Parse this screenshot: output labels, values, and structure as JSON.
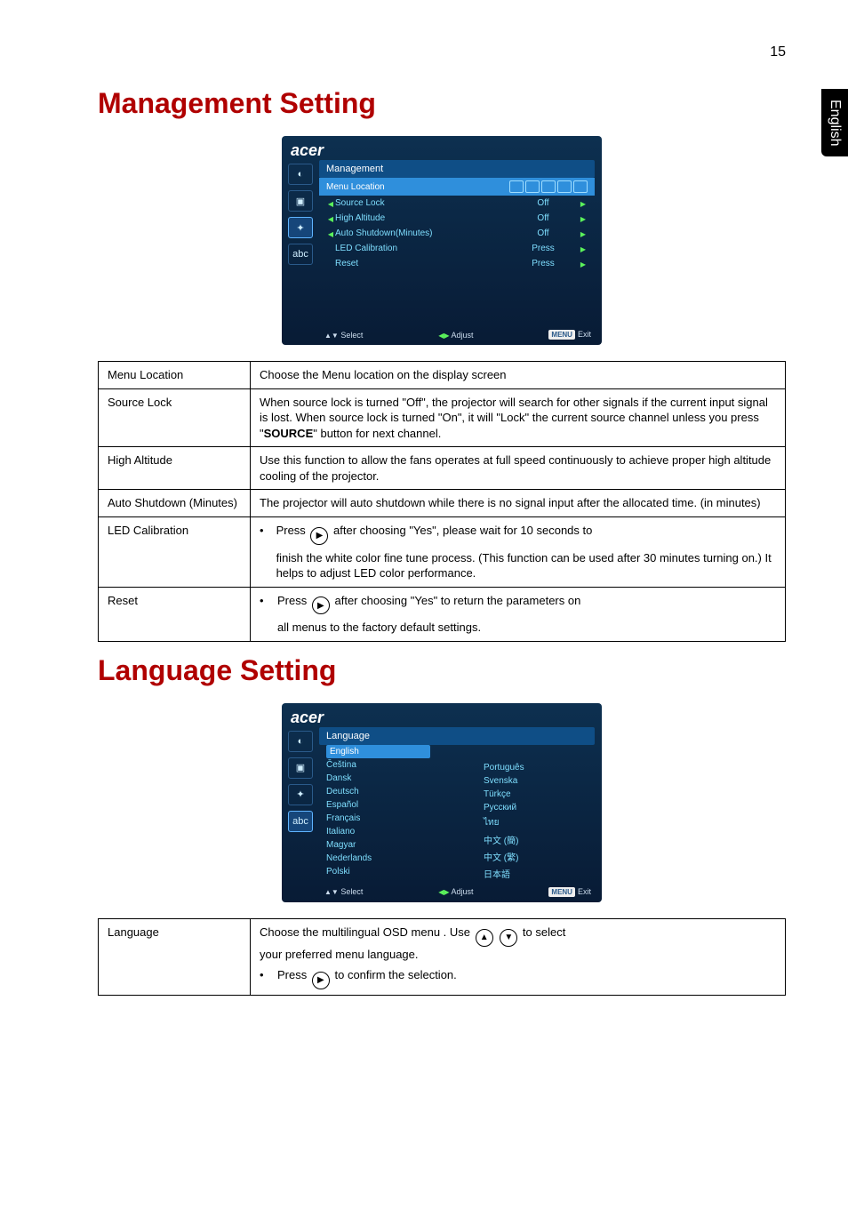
{
  "page_number": "15",
  "side_tab": "English",
  "headings": {
    "management": "Management Setting",
    "language": "Language Setting"
  },
  "colors": {
    "heading": "#b00000",
    "osd_bg_top": "#0d3050",
    "osd_bg_bottom": "#081b35",
    "osd_text": "#7fdfff",
    "osd_highlight": "#2f8fdc",
    "osd_header": "#0f4e86",
    "arrow_green": "#5bf25b",
    "border": "#000000"
  },
  "osd1": {
    "logo": "acer",
    "title": "Management",
    "selected_row": {
      "label": "Menu Location"
    },
    "rows": [
      {
        "label": "Source Lock",
        "value": "Off"
      },
      {
        "label": "High Altitude",
        "value": "Off"
      },
      {
        "label": "Auto Shutdown(Minutes)",
        "value": "Off"
      },
      {
        "label": "LED Calibration",
        "value": "Press"
      },
      {
        "label": "Reset",
        "value": "Press"
      }
    ],
    "footer": {
      "select": "Select",
      "adjust": "Adjust",
      "menu": "MENU",
      "exit": "Exit"
    }
  },
  "table1": [
    {
      "k": "Menu Location",
      "v": "Choose the Menu location on the display screen"
    },
    {
      "k": "Source Lock",
      "v": "When source lock is turned \"Off\", the projector will search for other signals if the current input signal is lost. When source lock is turned \"On\", it will \"Lock\" the current source channel unless you press \"SOURCE\" button for next channel."
    },
    {
      "k": "High Altitude",
      "v": "Use this function to allow the fans operates at full speed continuously to achieve proper high altitude cooling of the projector."
    },
    {
      "k": "Auto Shutdown (Minutes)",
      "v": "The projector will auto shutdown while there is no signal input after the allocated time. (in minutes)"
    },
    {
      "k": "LED Calibration",
      "press": "Press",
      "v_after": "after choosing \"Yes\", please wait for 10 seconds to",
      "v_rest": "finish the white color fine tune process. (This function can be used after 30 minutes turning on.) It helps to adjust LED color performance."
    },
    {
      "k": "Reset",
      "press": "Press",
      "v_after": "after choosing \"Yes\" to return the parameters on",
      "v_rest": "all menus to the factory default settings."
    }
  ],
  "osd2": {
    "logo": "acer",
    "title": "Language",
    "highlight": "English",
    "left_col": [
      "Čeština",
      "Dansk",
      "Deutsch",
      "Español",
      "Français",
      "Italiano",
      "Magyar",
      "Nederlands",
      "Polski"
    ],
    "right_col": [
      "Português",
      "Svenska",
      "Türkçe",
      "Русский",
      "ไทย",
      "中文 (簡)",
      "中文 (繁)",
      "日本語"
    ],
    "footer": {
      "select": "Select",
      "adjust": "Adjust",
      "menu": "MENU",
      "exit": "Exit"
    }
  },
  "table2": {
    "k": "Language",
    "line1a": "Choose the multilingual OSD menu . Use",
    "line1b": "to select",
    "line2": "your preferred menu language.",
    "press": "Press",
    "line3": "to confirm the selection."
  }
}
